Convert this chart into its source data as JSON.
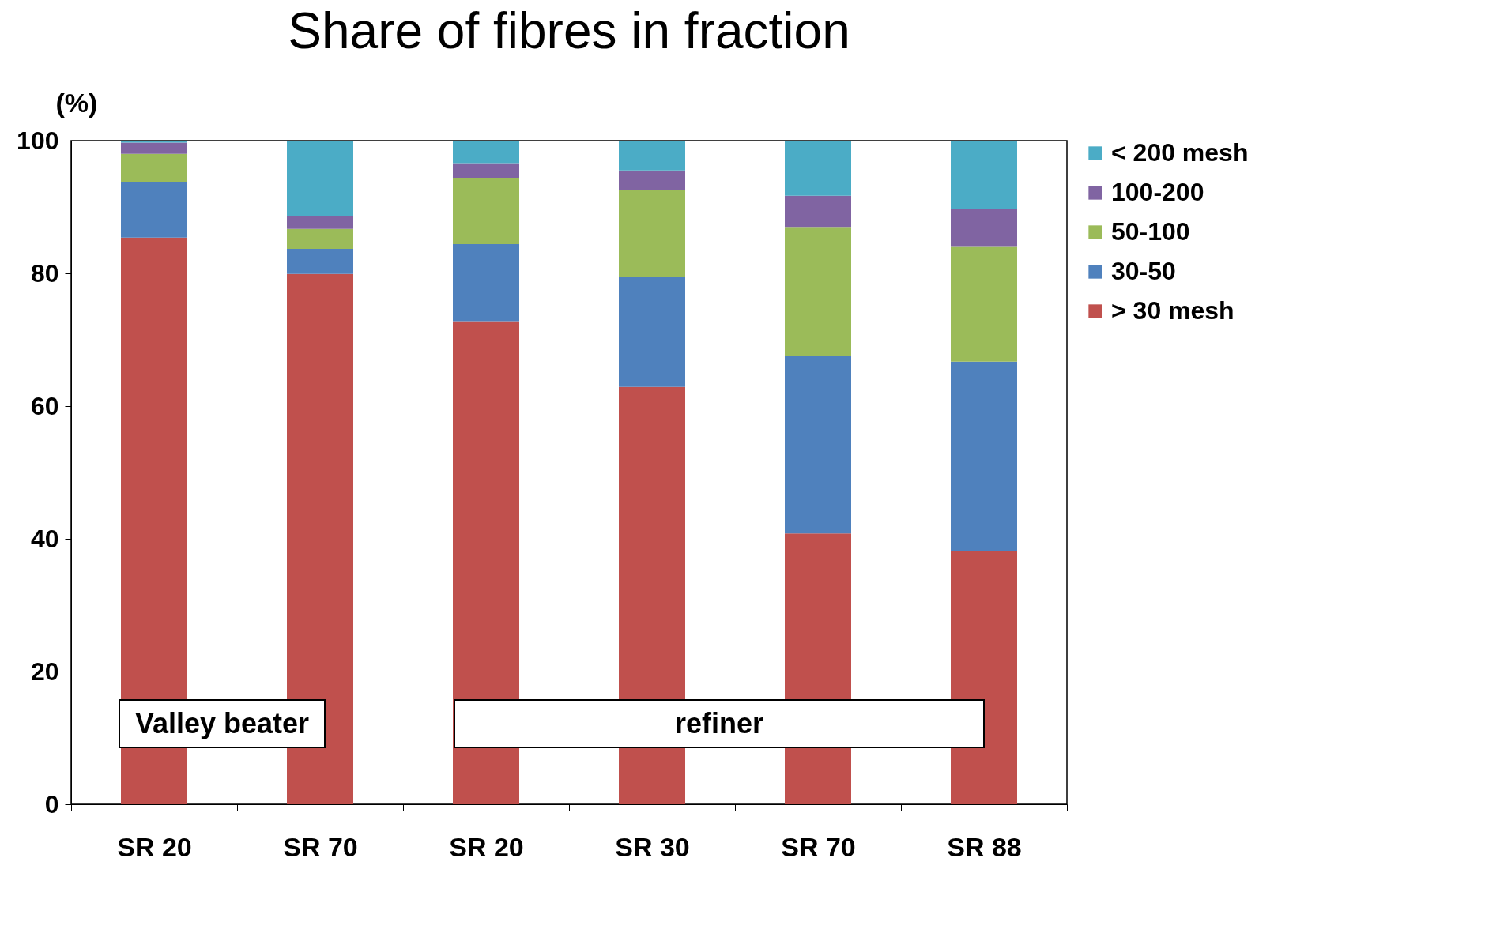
{
  "chart_data": {
    "type": "bar",
    "title": "Share of fibres in fraction",
    "ylabel": "(%)",
    "stacked": true,
    "categories": [
      "SR 20",
      "SR 70",
      "SR 20",
      "SR 30",
      "SR 70",
      "SR 88"
    ],
    "series": [
      {
        "name": "> 30 mesh",
        "color": "#c0504d",
        "values": [
          85.4,
          79.9,
          72.8,
          62.9,
          40.8,
          38.2
        ]
      },
      {
        "name": "30-50",
        "color": "#4f81bd",
        "values": [
          8.3,
          3.8,
          11.6,
          16.6,
          26.7,
          28.5
        ]
      },
      {
        "name": "50-100",
        "color": "#9bbb59",
        "values": [
          4.3,
          3.0,
          10.0,
          13.1,
          19.5,
          17.3
        ]
      },
      {
        "name": "100-200",
        "color": "#8064a2",
        "values": [
          1.7,
          1.9,
          2.2,
          2.9,
          4.7,
          5.7
        ]
      },
      {
        "name": "< 200 mesh",
        "color": "#4bacc6",
        "values": [
          0.3,
          11.4,
          3.4,
          4.5,
          8.3,
          10.3
        ]
      }
    ],
    "ylim": [
      0,
      100
    ],
    "yticks": [
      0,
      20,
      40,
      60,
      80,
      100
    ],
    "grid": false,
    "legend": "right",
    "annotations": [
      "Valley beater",
      "refiner"
    ]
  }
}
